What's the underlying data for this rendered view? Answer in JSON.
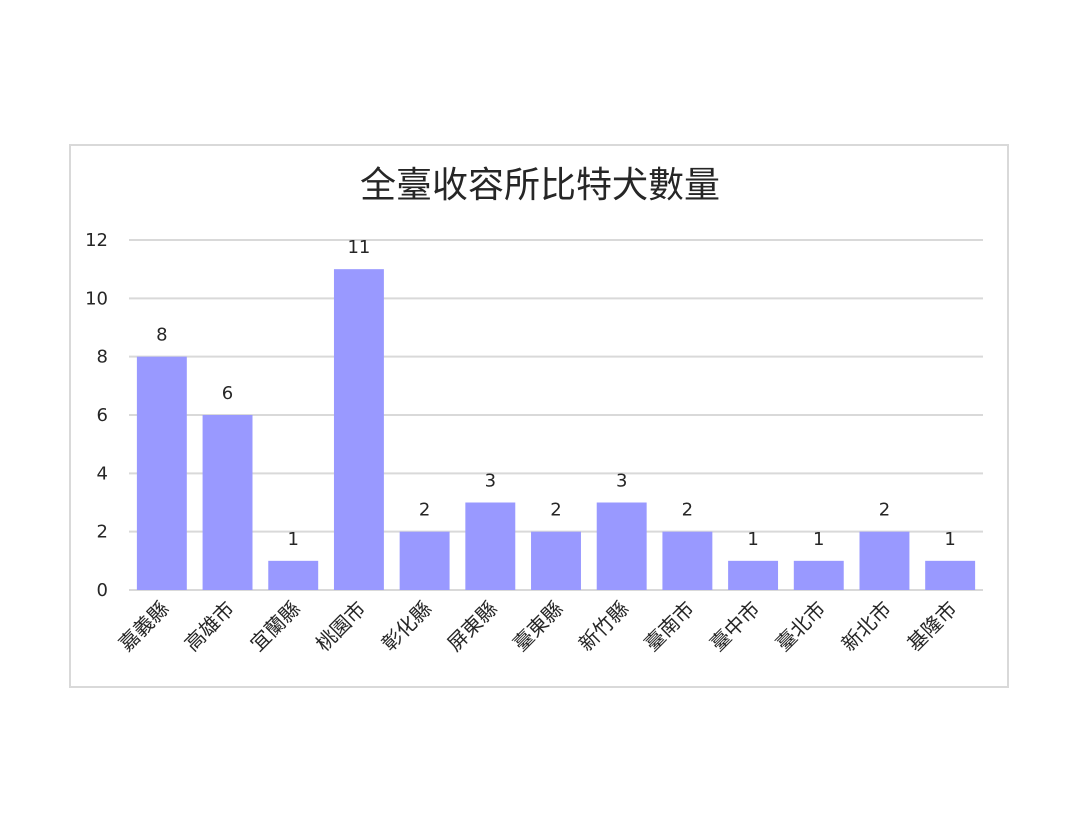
{
  "chart_data": {
    "type": "bar",
    "title": "全臺收容所比特犬數量",
    "categories": [
      "嘉義縣",
      "高雄市",
      "宜蘭縣",
      "桃園市",
      "彰化縣",
      "屏東縣",
      "臺東縣",
      "新竹縣",
      "臺南市",
      "臺中市",
      "臺北市",
      "新北市",
      "基隆市"
    ],
    "values": [
      8,
      6,
      1,
      11,
      2,
      3,
      2,
      3,
      2,
      1,
      1,
      2,
      1
    ],
    "ylim": [
      0,
      12
    ],
    "yticks": [
      0,
      2,
      4,
      6,
      8,
      10,
      12
    ],
    "xlabel": "",
    "ylabel": "",
    "grid": true,
    "legend": "none",
    "bar_color": "#9999ff",
    "grid_color": "#d9d9d9",
    "data_labels": true
  }
}
